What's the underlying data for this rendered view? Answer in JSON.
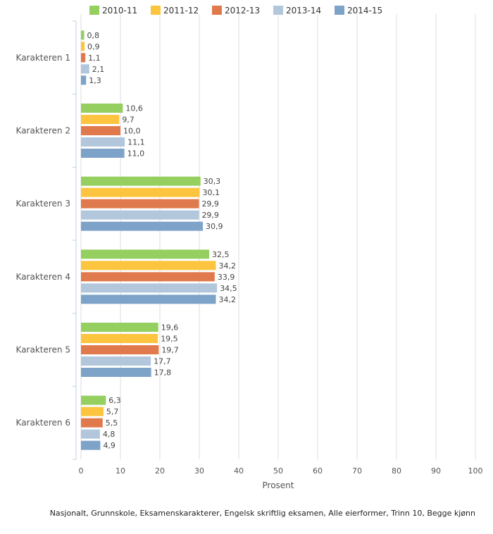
{
  "chart_data": {
    "type": "bar",
    "orientation": "horizontal",
    "categories": [
      "Karakteren 1",
      "Karakteren 2",
      "Karakteren 3",
      "Karakteren 4",
      "Karakteren 5",
      "Karakteren 6"
    ],
    "series": [
      {
        "name": "2010-11",
        "color": "#94cf60",
        "values": [
          0.8,
          10.6,
          30.3,
          32.5,
          19.6,
          6.3
        ],
        "labels": [
          "0,8",
          "10,6",
          "30,3",
          "32,5",
          "19,6",
          "6,3"
        ]
      },
      {
        "name": "2011-12",
        "color": "#fdc53f",
        "values": [
          0.9,
          9.7,
          30.1,
          34.2,
          19.5,
          5.7
        ],
        "labels": [
          "0,9",
          "9,7",
          "30,1",
          "34,2",
          "19,5",
          "5,7"
        ]
      },
      {
        "name": "2012-13",
        "color": "#e07a4c",
        "values": [
          1.1,
          10.0,
          29.9,
          33.9,
          19.7,
          5.5
        ],
        "labels": [
          "1,1",
          "10,0",
          "29,9",
          "33,9",
          "19,7",
          "5,5"
        ]
      },
      {
        "name": "2013-14",
        "color": "#b2c7dc",
        "values": [
          2.1,
          11.1,
          29.9,
          34.5,
          17.7,
          4.8
        ],
        "labels": [
          "2,1",
          "11,1",
          "29,9",
          "34,5",
          "17,7",
          "4,8"
        ]
      },
      {
        "name": "2014-15",
        "color": "#7ea3c9",
        "values": [
          1.3,
          11.0,
          30.9,
          34.2,
          17.8,
          4.9
        ],
        "labels": [
          "1,3",
          "11,0",
          "30,9",
          "34,2",
          "17,8",
          "4,9"
        ]
      }
    ],
    "xlabel": "Prosent",
    "xlim": [
      0,
      100
    ],
    "xticks": [
      0,
      10,
      20,
      30,
      40,
      50,
      60,
      70,
      80,
      90,
      100
    ],
    "grid": true,
    "legend_position": "top",
    "footnote": "Nasjonalt, Grunnskole, Eksamenskarakterer, Engelsk skriftlig eksamen, Alle eierformer, Trinn 10, Begge kjønn"
  }
}
